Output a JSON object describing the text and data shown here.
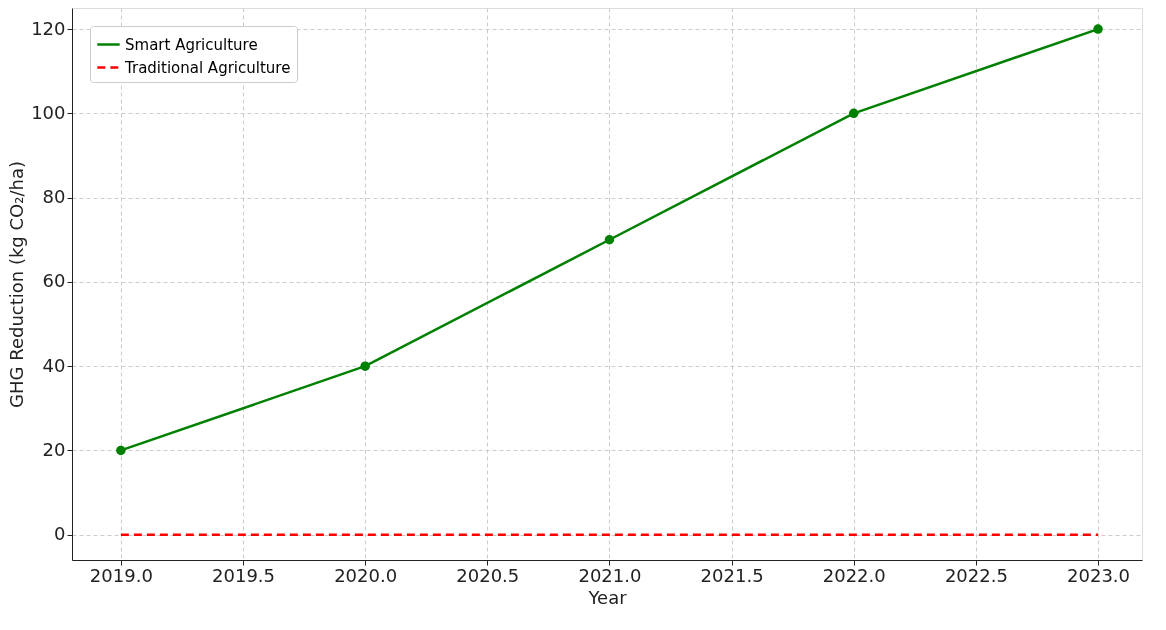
{
  "chart_data": {
    "type": "line",
    "xlabel": "Year",
    "ylabel": "GHG Reduction (kg CO₂/ha)",
    "x": [
      2019,
      2020,
      2021,
      2022,
      2023
    ],
    "series": [
      {
        "name": "Smart Agriculture",
        "color": "#008000",
        "values": [
          20,
          40,
          70,
          100,
          120
        ],
        "marker": "circle",
        "line_style": "solid"
      },
      {
        "name": "Traditional Agriculture",
        "color": "#ff0000",
        "values": [
          0,
          0,
          0,
          0,
          0
        ],
        "marker": "none",
        "line_style": "dashed"
      }
    ],
    "xlim": [
      2018.8,
      2023.18
    ],
    "ylim": [
      -6,
      125
    ],
    "xticks": [
      {
        "value": 2019,
        "label": "2019.0"
      },
      {
        "value": 2019.5,
        "label": "2019.5"
      },
      {
        "value": 2020,
        "label": "2020.0"
      },
      {
        "value": 2020.5,
        "label": "2020.5"
      },
      {
        "value": 2021,
        "label": "2021.0"
      },
      {
        "value": 2021.5,
        "label": "2021.5"
      },
      {
        "value": 2022,
        "label": "2022.0"
      },
      {
        "value": 2022.5,
        "label": "2022.5"
      },
      {
        "value": 2023,
        "label": "2023.0"
      }
    ],
    "yticks": [
      0,
      20,
      40,
      60,
      80,
      100,
      120
    ],
    "grid": true,
    "legend": "top left"
  }
}
